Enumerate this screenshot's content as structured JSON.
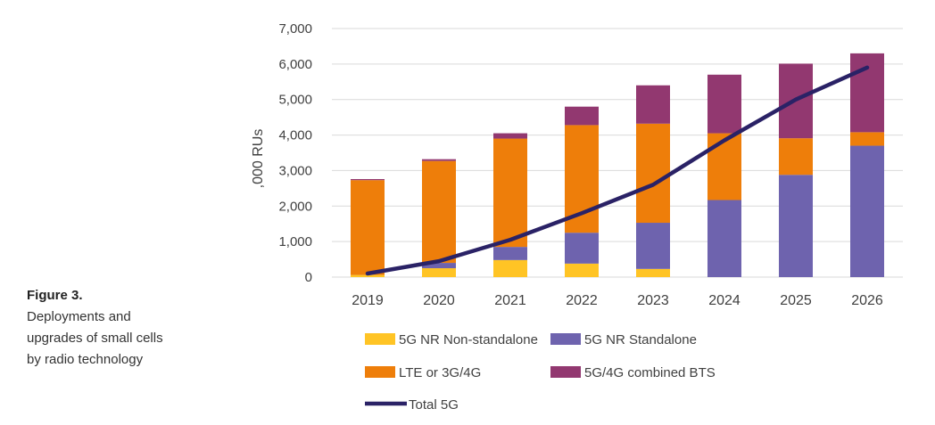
{
  "caption": {
    "title": "Figure 3.",
    "lines": [
      "Deployments and",
      "upgrades of small cells",
      "by radio technology"
    ]
  },
  "colors": {
    "nr_nsa": "#FFC425",
    "nr_sa": "#6E63AE",
    "lte": "#EE7E0A",
    "combined": "#923870",
    "total": "#2A2266",
    "grid": "#d9d9d9",
    "axis_text": "#404040"
  },
  "chart_data": {
    "type": "bar",
    "stacked": true,
    "title": "",
    "xlabel": "",
    "ylabel": ",000 RUs",
    "ylim": [
      0,
      7000
    ],
    "yticks": [
      0,
      1000,
      2000,
      3000,
      4000,
      5000,
      6000,
      7000
    ],
    "ytick_labels": [
      "0",
      "1,000",
      "2,000",
      "3,000",
      "4,000",
      "5,000",
      "6,000",
      "7,000"
    ],
    "grid": true,
    "legend_position": "bottom",
    "categories": [
      "2019",
      "2020",
      "2021",
      "2022",
      "2023",
      "2024",
      "2025",
      "2026"
    ],
    "series": [
      {
        "name": "5G NR Non-standalone",
        "kind": "bar",
        "color_key": "nr_nsa",
        "values": [
          60,
          250,
          480,
          380,
          230,
          0,
          0,
          0
        ]
      },
      {
        "name": "5G NR Standalone",
        "kind": "bar",
        "color_key": "nr_sa",
        "values": [
          0,
          150,
          370,
          870,
          1300,
          2170,
          2880,
          3700
        ]
      },
      {
        "name": "LTE or 3G/4G",
        "kind": "bar",
        "color_key": "lte",
        "values": [
          2670,
          2870,
          3050,
          3030,
          2790,
          1880,
          1030,
          380
        ]
      },
      {
        "name": "5G/4G combined BTS",
        "kind": "bar",
        "color_key": "combined",
        "values": [
          30,
          50,
          150,
          520,
          1080,
          1650,
          2100,
          2220
        ]
      },
      {
        "name": "Total 5G",
        "kind": "line",
        "color_key": "total",
        "values": [
          100,
          450,
          1050,
          1800,
          2600,
          3850,
          5000,
          5900
        ]
      }
    ]
  }
}
